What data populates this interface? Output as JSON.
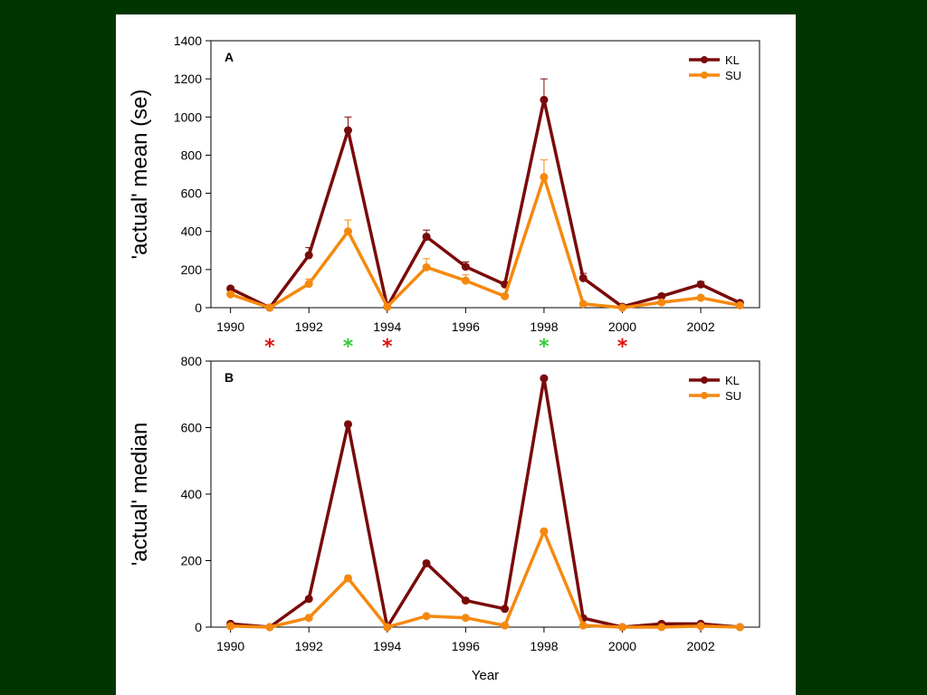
{
  "colors": {
    "background": "#013500",
    "KL": "#7a0a0a",
    "SU": "#f5890f",
    "star_red": "#e01010",
    "star_green": "#33cc33"
  },
  "chart_data": [
    {
      "type": "line",
      "panel": "A",
      "ylabel": "'actual' mean (se)",
      "xlabel": "",
      "x": [
        1990,
        1991,
        1992,
        1993,
        1994,
        1995,
        1996,
        1997,
        1998,
        1999,
        2000,
        2001,
        2002,
        2003
      ],
      "xlim": [
        1989.5,
        2003.5
      ],
      "xticks": [
        1990,
        1992,
        1994,
        1996,
        1998,
        2000,
        2002
      ],
      "ylim": [
        0,
        1400
      ],
      "yticks": [
        0,
        200,
        400,
        600,
        800,
        1000,
        1200,
        1400
      ],
      "legend_position": "top-right",
      "series": [
        {
          "name": "KL",
          "color": "#7a0a0a",
          "values": [
            100,
            0,
            275,
            930,
            5,
            372,
            215,
            122,
            1090,
            155,
            5,
            60,
            122,
            25
          ],
          "errors": [
            10,
            5,
            40,
            70,
            5,
            35,
            25,
            10,
            110,
            25,
            5,
            8,
            15,
            5
          ]
        },
        {
          "name": "SU",
          "color": "#f5890f",
          "values": [
            70,
            0,
            125,
            400,
            5,
            212,
            142,
            60,
            685,
            20,
            0,
            28,
            52,
            12
          ],
          "errors": [
            10,
            2,
            25,
            60,
            3,
            45,
            30,
            8,
            90,
            5,
            2,
            5,
            8,
            3
          ]
        }
      ],
      "annotations": [
        {
          "x": 1991,
          "text": "*",
          "color": "#e01010"
        },
        {
          "x": 1993,
          "text": "*",
          "color": "#33cc33"
        },
        {
          "x": 1994,
          "text": "*",
          "color": "#e01010"
        },
        {
          "x": 1998,
          "text": "*",
          "color": "#33cc33"
        },
        {
          "x": 2000,
          "text": "*",
          "color": "#e01010"
        }
      ]
    },
    {
      "type": "line",
      "panel": "B",
      "ylabel": "'actual' median",
      "xlabel": "Year",
      "x": [
        1990,
        1991,
        1992,
        1993,
        1994,
        1995,
        1996,
        1997,
        1998,
        1999,
        2000,
        2001,
        2002,
        2003
      ],
      "xlim": [
        1989.5,
        2003.5
      ],
      "xticks": [
        1990,
        1992,
        1994,
        1996,
        1998,
        2000,
        2002
      ],
      "ylim": [
        0,
        800
      ],
      "yticks": [
        0,
        200,
        400,
        600,
        800
      ],
      "legend_position": "top-right",
      "series": [
        {
          "name": "KL",
          "color": "#7a0a0a",
          "values": [
            10,
            0,
            85,
            610,
            0,
            192,
            80,
            55,
            748,
            27,
            0,
            10,
            10,
            0
          ]
        },
        {
          "name": "SU",
          "color": "#f5890f",
          "values": [
            3,
            0,
            28,
            147,
            0,
            33,
            28,
            5,
            288,
            5,
            0,
            0,
            3,
            0
          ]
        }
      ]
    }
  ]
}
